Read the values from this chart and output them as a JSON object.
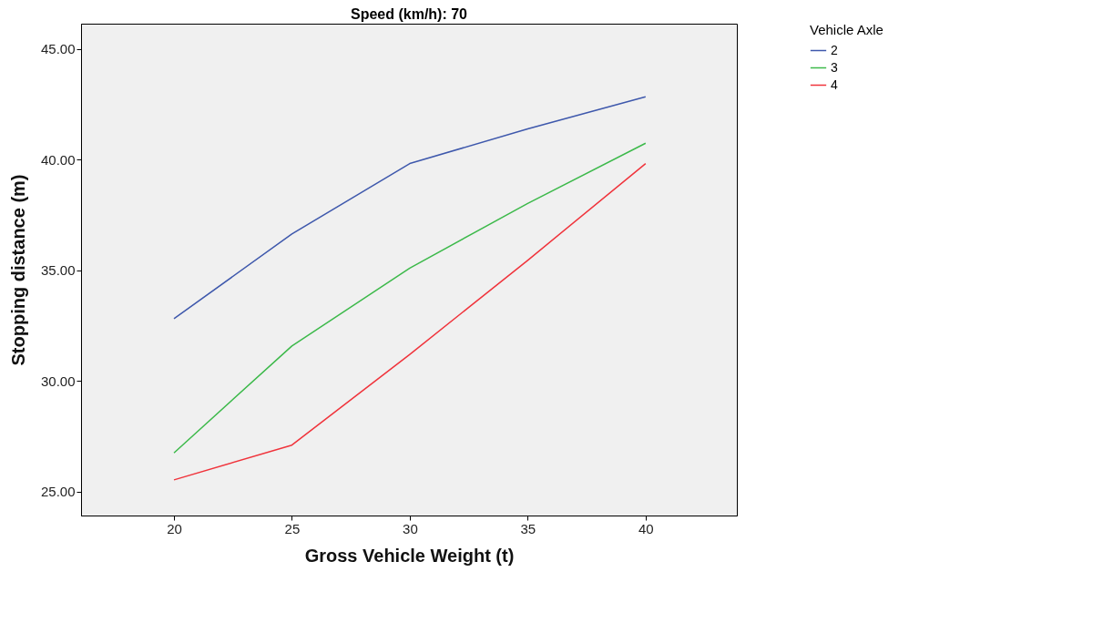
{
  "chart_data": {
    "type": "line",
    "title": "Speed (km/h): 70",
    "xlabel": "Gross Vehicle Weight (t)",
    "ylabel": "Stopping distance (m)",
    "legend_title": "Vehicle Axle",
    "legend": "top right",
    "grid": false,
    "x": [
      20,
      25,
      30,
      35,
      40
    ],
    "xlim": [
      16.06,
      43.87
    ],
    "xticks": [
      20,
      25,
      30,
      35,
      40
    ],
    "ylim": [
      23.93,
      46.15
    ],
    "yticks": [
      {
        "value": 25,
        "label": "25.00"
      },
      {
        "value": 30,
        "label": "30.00"
      },
      {
        "value": 35,
        "label": "35.00"
      },
      {
        "value": 40,
        "label": "40.00"
      },
      {
        "value": 45,
        "label": "45.00"
      }
    ],
    "series": [
      {
        "name": "2",
        "color": "#3e58ac",
        "values": [
          32.82,
          36.65,
          39.83,
          41.4,
          42.85
        ]
      },
      {
        "name": "3",
        "color": "#3cb94a",
        "values": [
          26.76,
          31.59,
          35.11,
          38.03,
          40.75
        ]
      },
      {
        "name": "4",
        "color": "#f0333b",
        "values": [
          25.54,
          27.11,
          31.21,
          35.46,
          39.83
        ]
      }
    ]
  }
}
